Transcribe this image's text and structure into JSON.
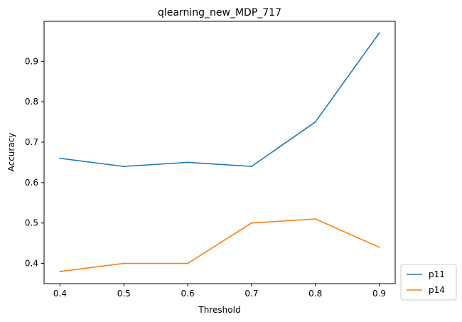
{
  "chart_data": {
    "type": "line",
    "title": "qlearning_new_MDP_717",
    "xlabel": "Threshold",
    "ylabel": "Accuracy",
    "x": [
      0.4,
      0.5,
      0.6,
      0.7,
      0.8,
      0.9
    ],
    "xticks": [
      "0.4",
      "0.5",
      "0.6",
      "0.7",
      "0.8",
      "0.9"
    ],
    "yticks": [
      "0.4",
      "0.5",
      "0.6",
      "0.7",
      "0.8",
      "0.9"
    ],
    "xlim": [
      0.375,
      0.925
    ],
    "ylim": [
      0.35,
      0.999
    ],
    "grid": false,
    "legend_placement": "outside-lower-right",
    "series": [
      {
        "name": "p11",
        "color": "#1f77b4",
        "values": [
          0.66,
          0.64,
          0.65,
          0.64,
          0.75,
          0.97
        ]
      },
      {
        "name": "p14",
        "color": "#ff7f0e",
        "values": [
          0.38,
          0.4,
          0.4,
          0.5,
          0.51,
          0.44
        ]
      }
    ]
  }
}
